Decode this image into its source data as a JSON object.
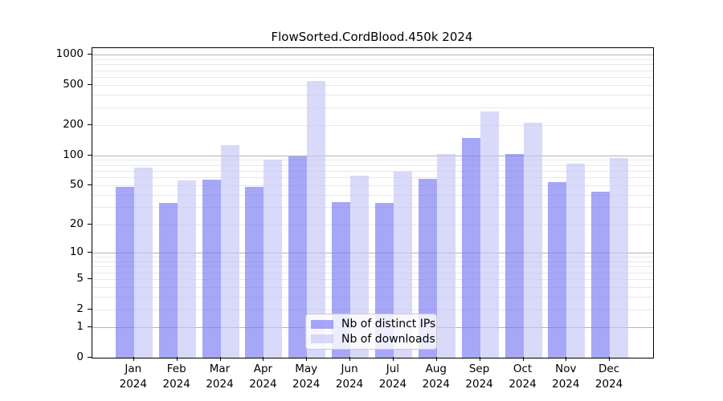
{
  "chart_data": {
    "type": "bar",
    "title": "FlowSorted.CordBlood.450k 2024",
    "categories": [
      "Jan",
      "Feb",
      "Mar",
      "Apr",
      "May",
      "Jun",
      "Jul",
      "Aug",
      "Sep",
      "Oct",
      "Nov",
      "Dec"
    ],
    "year_label": "2024",
    "series": [
      {
        "name": "Nb of distinct IPs",
        "color": "#7878f3",
        "fill_alpha": 0.65,
        "values": [
          48,
          33,
          57,
          48,
          97,
          34,
          33,
          58,
          148,
          104,
          54,
          43
        ]
      },
      {
        "name": "Nb of downloads",
        "color": "#c4c4f7",
        "fill_alpha": 0.65,
        "values": [
          75,
          56,
          127,
          90,
          546,
          63,
          69,
          104,
          272,
          210,
          83,
          94
        ]
      }
    ],
    "yscale": "log1p",
    "ylim": [
      0,
      1161
    ],
    "yticks": {
      "values": [
        1000,
        500,
        200,
        100,
        50,
        20,
        10,
        5,
        2,
        1,
        0
      ],
      "labels": [
        "1000",
        "500",
        "200",
        "100",
        "50",
        "20",
        "10",
        "5",
        "2",
        "1",
        "0"
      ]
    },
    "grid": {
      "major_color": "#b2b2b2",
      "minor_color": "#e8e8e8",
      "orientation": "horizontal"
    },
    "legend": {
      "position": "lower center"
    },
    "xlabel": "",
    "ylabel": ""
  }
}
